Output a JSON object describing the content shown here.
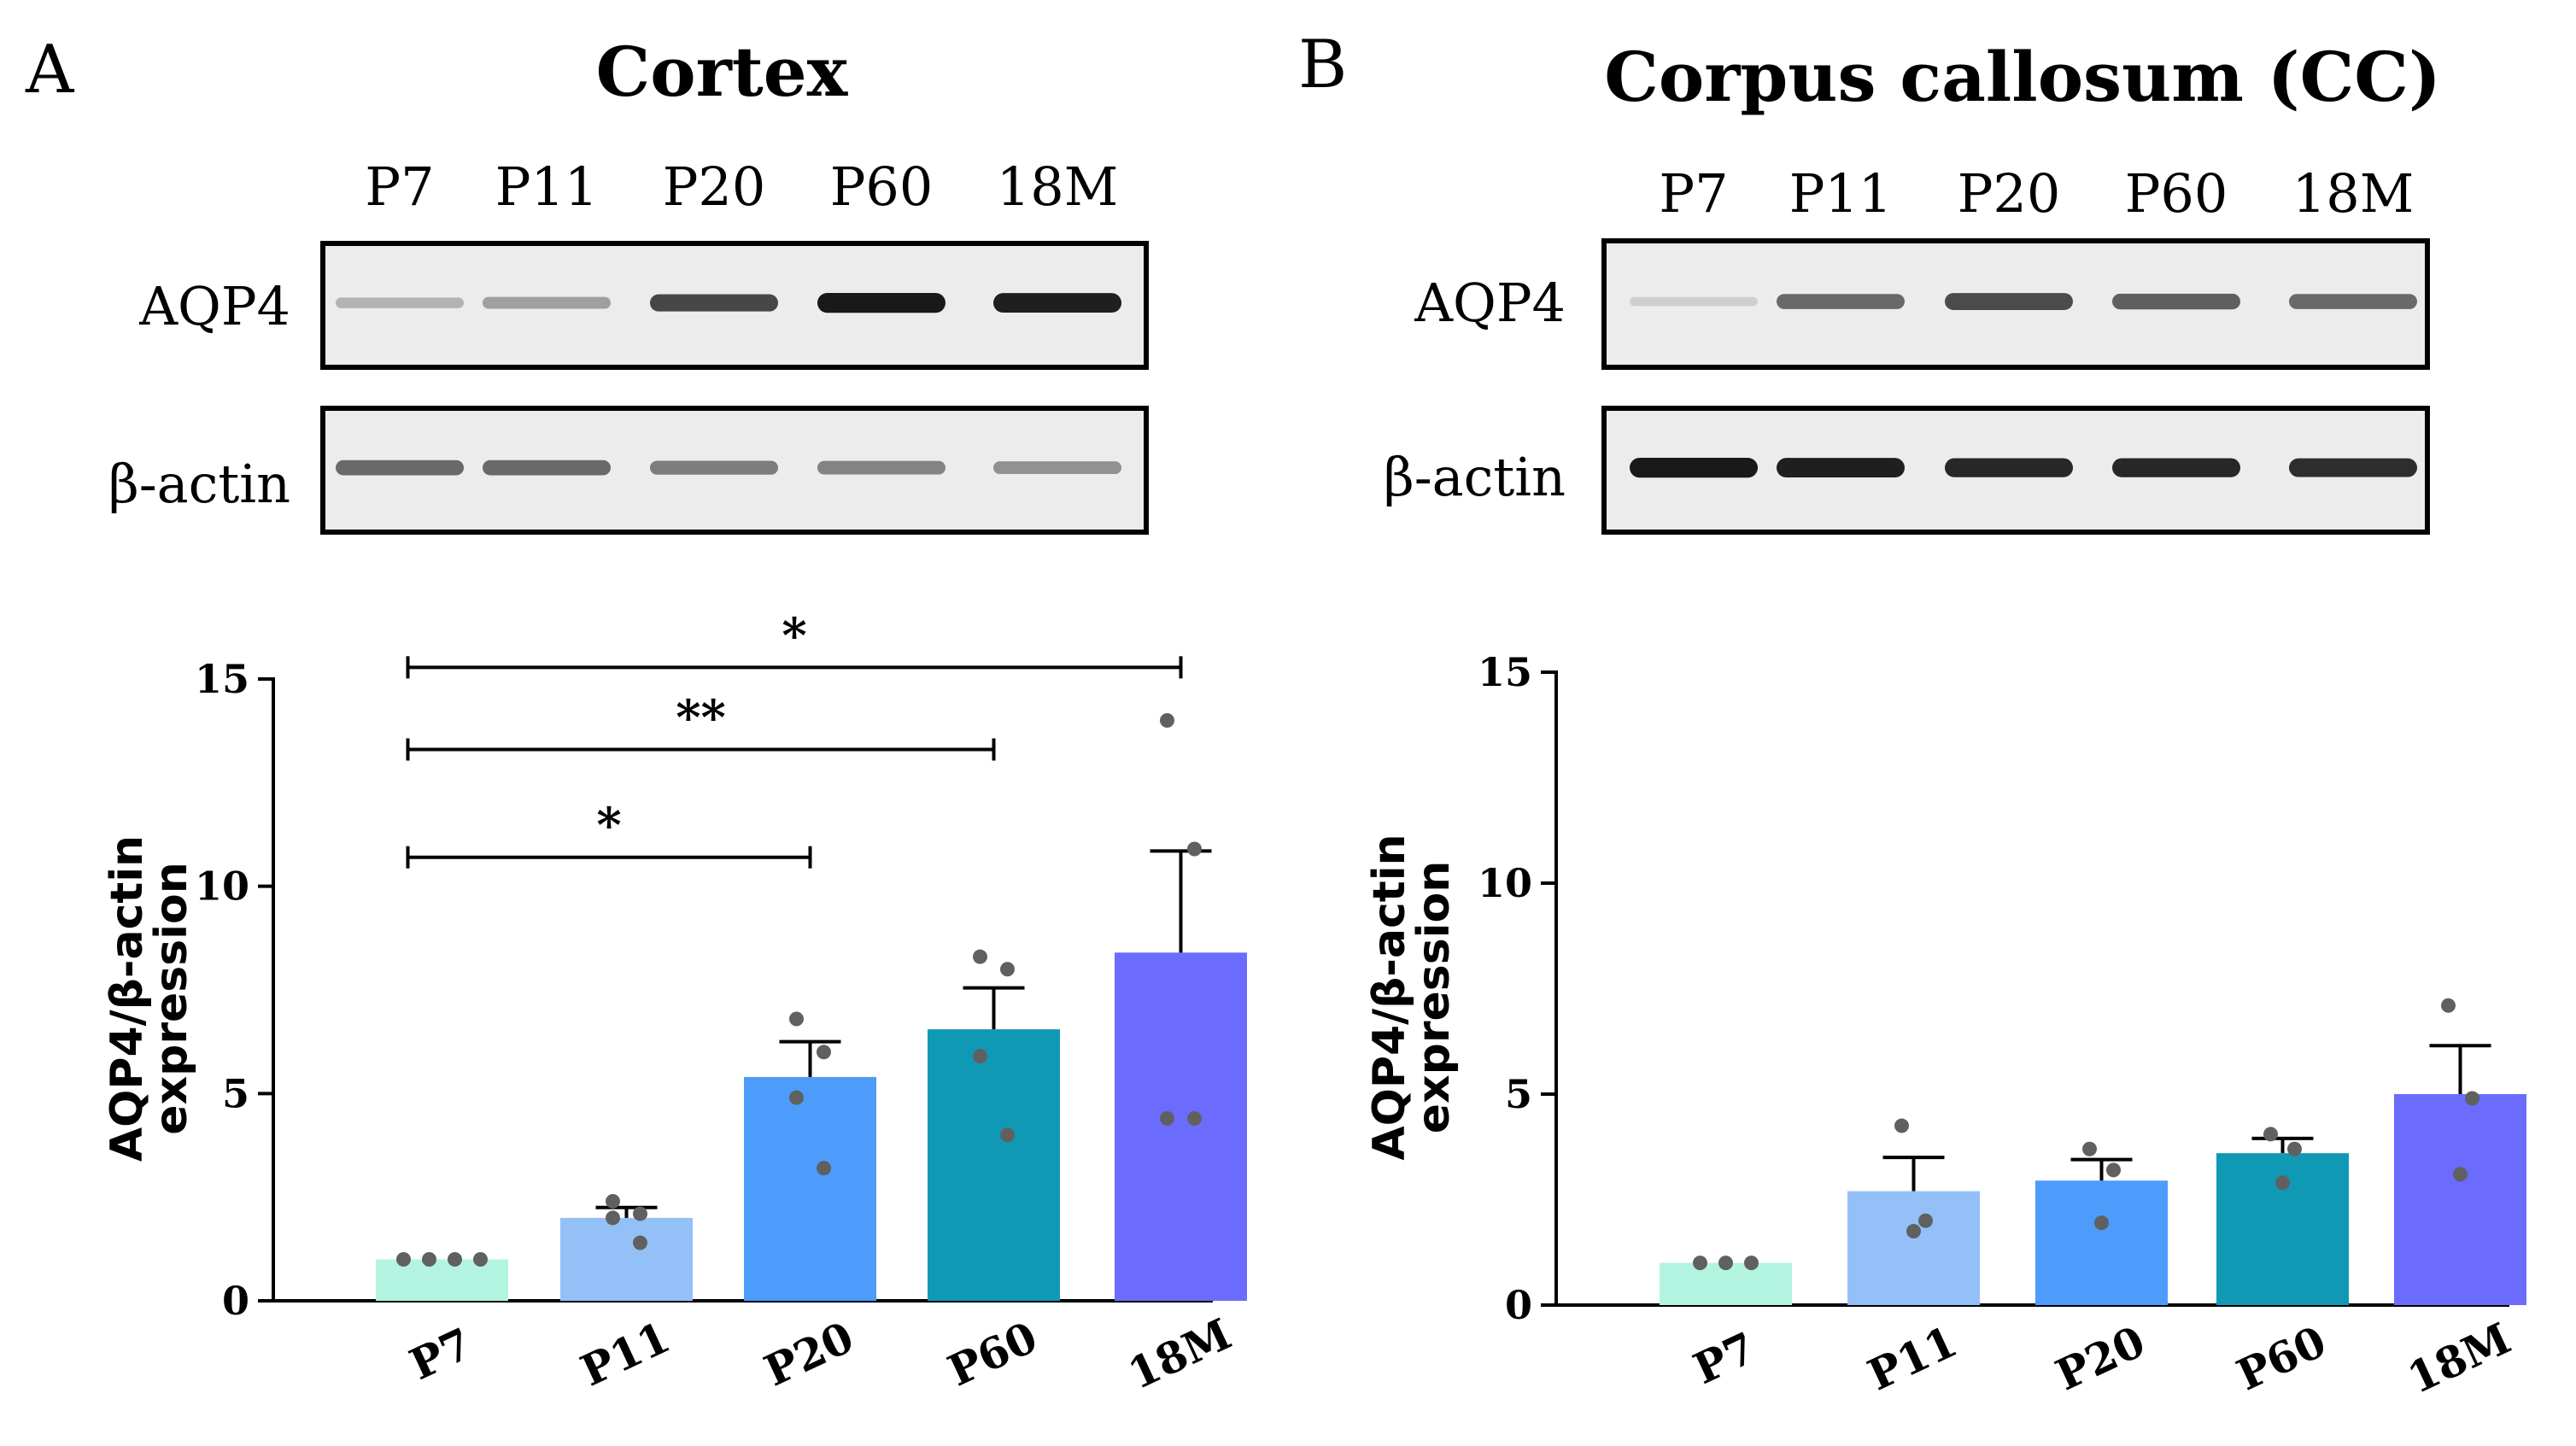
{
  "chart_data": [
    {
      "type": "bar",
      "panel_label": "A",
      "title": "Cortex",
      "blot": {
        "lane_labels": [
          "P7",
          "P11",
          "P20",
          "P60",
          "18M"
        ],
        "rows": [
          {
            "label": "AQP4",
            "band_intensity": [
              0.18,
              0.28,
              0.72,
              0.95,
              0.92
            ]
          },
          {
            "label": "β-actin",
            "band_intensity": [
              0.55,
              0.55,
              0.45,
              0.42,
              0.35
            ]
          }
        ]
      },
      "categories": [
        "P7",
        "P11",
        "P20",
        "P60",
        "18M"
      ],
      "values": [
        1.0,
        2.0,
        5.4,
        6.55,
        8.4
      ],
      "errors": [
        0.0,
        0.25,
        0.85,
        1.0,
        2.45
      ],
      "points": [
        [
          1.0,
          1.0,
          1.0,
          1.0
        ],
        [
          2.4,
          1.4,
          2.0,
          2.1
        ],
        [
          6.8,
          6.0,
          4.9,
          3.2
        ],
        [
          8.3,
          8.0,
          5.9,
          4.0
        ],
        [
          14.0,
          10.9,
          4.4,
          4.4
        ]
      ],
      "bar_colors": [
        "#b3f4e0",
        "#94c0f8",
        "#4d9bfb",
        "#1099b5",
        "#6b6cfe"
      ],
      "ylabel": [
        "AQP4/β-actin",
        "expression"
      ],
      "xlabel": "",
      "ylim": [
        0,
        15
      ],
      "yticks": [
        0,
        5,
        10,
        15
      ],
      "significance": [
        {
          "from": 0,
          "to": 2,
          "y": 10.7,
          "label": "*"
        },
        {
          "from": 0,
          "to": 3,
          "y": 13.3,
          "label": "**"
        },
        {
          "from": 0,
          "to": 4,
          "y": 15.9,
          "label": "*"
        }
      ]
    },
    {
      "type": "bar",
      "panel_label": "B",
      "title": "Corpus callosum (CC)",
      "blot": {
        "lane_labels": [
          "P7",
          "P11",
          "P20",
          "P60",
          "18M"
        ],
        "rows": [
          {
            "label": "AQP4",
            "band_intensity": [
              0.04,
              0.55,
              0.7,
              0.6,
              0.55
            ]
          },
          {
            "label": "β-actin",
            "band_intensity": [
              0.95,
              0.92,
              0.88,
              0.88,
              0.85
            ]
          }
        ]
      },
      "categories": [
        "P7",
        "P11",
        "P20",
        "P60",
        "18M"
      ],
      "values": [
        1.0,
        2.7,
        2.95,
        3.6,
        5.0
      ],
      "errors": [
        0.0,
        0.8,
        0.5,
        0.35,
        1.15
      ],
      "points": [
        [
          1.0,
          1.0,
          1.0
        ],
        [
          4.25,
          2.0,
          1.75
        ],
        [
          3.7,
          3.2,
          1.95
        ],
        [
          4.05,
          3.7,
          2.9
        ],
        [
          7.1,
          4.9,
          3.1
        ]
      ],
      "bar_colors": [
        "#b3f4e0",
        "#94c0f8",
        "#4d9bfb",
        "#1099b5",
        "#6b6cfe"
      ],
      "ylabel": [
        "AQP4/β-actin",
        "expression"
      ],
      "xlabel": "",
      "ylim": [
        0,
        15
      ],
      "yticks": [
        0,
        5,
        10,
        15
      ],
      "significance": []
    }
  ]
}
